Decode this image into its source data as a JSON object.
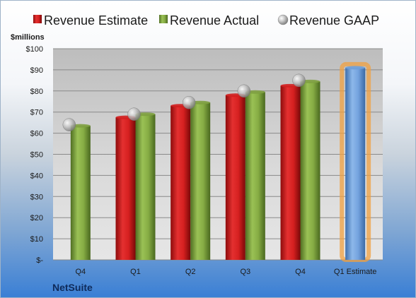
{
  "chart_data": {
    "type": "bar",
    "ylabel": "$millions",
    "ylim": [
      0,
      100
    ],
    "yticks": [
      "$-",
      "$10",
      "$20",
      "$30",
      "$40",
      "$50",
      "$60",
      "$70",
      "$80",
      "$90",
      "$100"
    ],
    "categories": [
      "Q4",
      "Q1",
      "Q2",
      "Q3",
      "Q4",
      "Q1 Estimate"
    ],
    "series": [
      {
        "name": "Revenue Estimate",
        "kind": "bar",
        "color": "#d22020",
        "values": [
          null,
          67.5,
          73,
          78,
          82.5,
          null
        ]
      },
      {
        "name": "Revenue Actual",
        "kind": "bar",
        "color": "#7ea040",
        "values": [
          63.5,
          69,
          74.5,
          79.5,
          84.5,
          null
        ]
      },
      {
        "name": "Revenue GAAP",
        "kind": "marker",
        "color": "#a0a0a0",
        "values": [
          64,
          69,
          74.5,
          80,
          85,
          null
        ]
      },
      {
        "name": "",
        "kind": "bar",
        "color": "#6f9fd8",
        "highlight": "#f0a040",
        "values": [
          null,
          null,
          null,
          null,
          null,
          91
        ]
      }
    ],
    "grid": true,
    "legend": "top"
  },
  "footer": {
    "brand": "NetSuite"
  }
}
